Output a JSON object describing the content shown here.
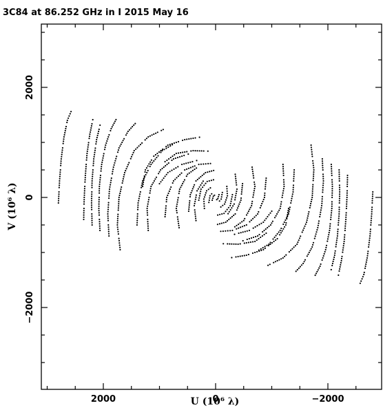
{
  "chart_data": {
    "type": "scatter",
    "title": "3C84 at 86.252 GHz in I   2015 May 16",
    "xlabel": "U (10⁶ λ)",
    "ylabel": "V (10⁶ λ)",
    "xlim": [
      3000,
      -3000
    ],
    "ylim": [
      -3200,
      3100
    ],
    "x_reversed": true,
    "grid": false,
    "xticks": [
      2000,
      0,
      -2000
    ],
    "xtick_labels": [
      "2000",
      "0",
      "−2000"
    ],
    "yticks": [
      2000,
      0,
      -2000
    ],
    "ytick_labels": [
      "2000",
      "0",
      "−2000"
    ],
    "marker_color": "#000000",
    "description": "uv-coverage sampled along elliptical tracks; each visibility (u,v) appears together with its conjugate (-u,-v)",
    "series": [
      {
        "tracks_uv_points_sampled": [
          [
            [
              2800,
              -100
            ],
            [
              2780,
              300
            ],
            [
              2750,
              700
            ],
            [
              2700,
              1100
            ],
            [
              2640,
              1400
            ],
            [
              2560,
              1600
            ]
          ],
          [
            [
              2350,
              -400
            ],
            [
              2340,
              0
            ],
            [
              2320,
              400
            ],
            [
              2290,
              800
            ],
            [
              2240,
              1150
            ],
            [
              2180,
              1450
            ]
          ],
          [
            [
              2200,
              -500
            ],
            [
              2210,
              -100
            ],
            [
              2200,
              300
            ],
            [
              2170,
              700
            ],
            [
              2120,
              1050
            ],
            [
              2050,
              1350
            ]
          ],
          [
            [
              2060,
              -600
            ],
            [
              2080,
              -200
            ],
            [
              2070,
              200
            ],
            [
              2030,
              600
            ],
            [
              1960,
              950
            ],
            [
              1860,
              1250
            ],
            [
              1740,
              1480
            ]
          ],
          [
            [
              1900,
              -700
            ],
            [
              1920,
              -300
            ],
            [
              1890,
              150
            ],
            [
              1820,
              550
            ],
            [
              1720,
              900
            ],
            [
              1560,
              1200
            ],
            [
              1380,
              1400
            ]
          ],
          [
            [
              1700,
              -950
            ],
            [
              1750,
              -500
            ],
            [
              1720,
              0
            ],
            [
              1620,
              450
            ],
            [
              1450,
              850
            ],
            [
              1200,
              1100
            ],
            [
              900,
              1250
            ]
          ],
          [
            [
              1400,
              -500
            ],
            [
              1380,
              -100
            ],
            [
              1300,
              300
            ],
            [
              1150,
              600
            ],
            [
              950,
              850
            ],
            [
              700,
              1000
            ]
          ],
          [
            [
              1200,
              -600
            ],
            [
              1220,
              -200
            ],
            [
              1150,
              200
            ],
            [
              980,
              500
            ],
            [
              750,
              700
            ],
            [
              450,
              800
            ]
          ],
          [
            [
              1300,
              200
            ],
            [
              1250,
              500
            ],
            [
              1100,
              750
            ],
            [
              850,
              950
            ],
            [
              550,
              1050
            ],
            [
              250,
              1100
            ]
          ],
          [
            [
              900,
              -350
            ],
            [
              870,
              0
            ],
            [
              750,
              300
            ],
            [
              550,
              500
            ],
            [
              300,
              600
            ],
            [
              50,
              620
            ]
          ],
          [
            [
              650,
              -550
            ],
            [
              700,
              -200
            ],
            [
              640,
              150
            ],
            [
              500,
              420
            ],
            [
              280,
              580
            ]
          ],
          [
            [
              480,
              -250
            ],
            [
              450,
              50
            ],
            [
              350,
              300
            ],
            [
              180,
              450
            ],
            [
              0,
              500
            ]
          ],
          [
            [
              350,
              -420
            ],
            [
              380,
              -150
            ],
            [
              330,
              120
            ],
            [
              200,
              330
            ]
          ],
          [
            [
              300,
              -50
            ],
            [
              260,
              150
            ],
            [
              150,
              290
            ],
            [
              0,
              330
            ]
          ],
          [
            [
              200,
              -200
            ],
            [
              210,
              -30
            ],
            [
              160,
              120
            ],
            [
              60,
              200
            ]
          ],
          [
            [
              120,
              -90
            ],
            [
              100,
              30
            ],
            [
              40,
              100
            ]
          ],
          [
            [
              60,
              -50
            ],
            [
              40,
              20
            ],
            [
              0,
              60
            ]
          ],
          [
            [
              900,
              650
            ],
            [
              700,
              800
            ],
            [
              400,
              850
            ],
            [
              100,
              840
            ]
          ],
          [
            [
              1000,
              250
            ],
            [
              850,
              450
            ],
            [
              600,
              600
            ],
            [
              300,
              680
            ]
          ]
        ]
      }
    ]
  }
}
